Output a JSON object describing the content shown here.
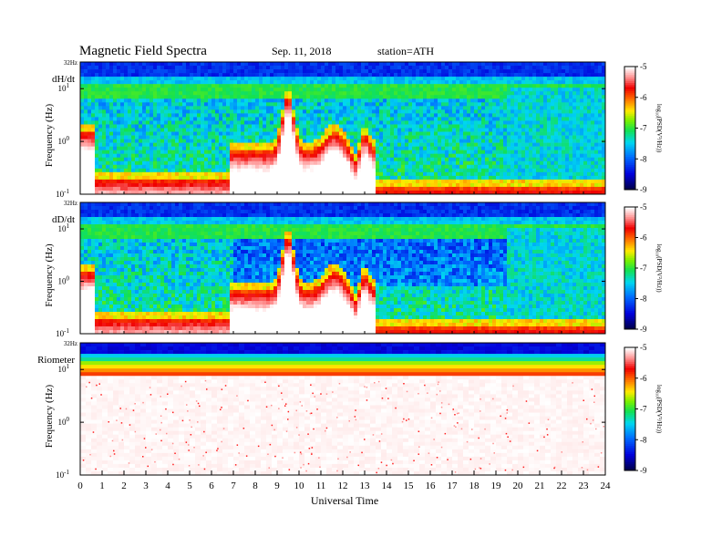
{
  "header": {
    "title": "Magnetic  Field  Spectra",
    "date": "Sep. 11, 2018",
    "station": "station=ATH"
  },
  "chart_data": [
    {
      "type": "heatmap",
      "panel_label": "dH/dt",
      "top_label": "32Hz",
      "ylabel": "Frequency  (Hz)",
      "y_scale": "log",
      "y_ticks": [
        {
          "base": "10",
          "exp": "1"
        },
        {
          "base": "10",
          "exp": "0"
        },
        {
          "base": "10",
          "exp": "-1"
        }
      ],
      "ylim_hz": [
        0.1,
        32
      ],
      "colorbar": {
        "ticks": [
          "-5",
          "-6",
          "-7",
          "-8",
          "-9"
        ],
        "label": "log₁₀(PSD(V²/Hz))",
        "range": [
          -9,
          -5
        ]
      },
      "features": {
        "pulsation_band_hours": [
          6.8,
          13.5
        ],
        "peak_hour": 9.5
      }
    },
    {
      "type": "heatmap",
      "panel_label": "dD/dt",
      "top_label": "32Hz",
      "ylabel": "Frequency  (Hz)",
      "y_scale": "log",
      "y_ticks": [
        {
          "base": "10",
          "exp": "1"
        },
        {
          "base": "10",
          "exp": "0"
        },
        {
          "base": "10",
          "exp": "-1"
        }
      ],
      "ylim_hz": [
        0.1,
        32
      ],
      "colorbar": {
        "ticks": [
          "-5",
          "-6",
          "-7",
          "-8",
          "-9"
        ],
        "label": "log₁₀(PSD(V²/Hz))",
        "range": [
          -9,
          -5
        ]
      },
      "features": {
        "pulsation_band_hours": [
          6.8,
          13.5
        ],
        "peak_hour": 9.5
      }
    },
    {
      "type": "heatmap",
      "panel_label": "Riometer",
      "top_label": "32Hz",
      "ylabel": "Frequency  (Hz)",
      "y_scale": "log",
      "y_ticks": [
        {
          "base": "10",
          "exp": "1"
        },
        {
          "base": "10",
          "exp": "0"
        },
        {
          "base": "10",
          "exp": "-1"
        }
      ],
      "ylim_hz": [
        0.1,
        32
      ],
      "colorbar": {
        "ticks": [
          "-5",
          "-6",
          "-7",
          "-8",
          "-9"
        ],
        "label": "log₁₀(PSD(V²/Hz))",
        "range": [
          -9,
          -5
        ]
      }
    }
  ],
  "x_axis": {
    "label": "Universal Time",
    "xlim": [
      0,
      24
    ],
    "ticks": [
      "0",
      "1",
      "2",
      "3",
      "4",
      "5",
      "6",
      "7",
      "8",
      "9",
      "10",
      "11",
      "12",
      "13",
      "14",
      "15",
      "16",
      "17",
      "18",
      "19",
      "20",
      "21",
      "22",
      "23",
      "24"
    ]
  }
}
